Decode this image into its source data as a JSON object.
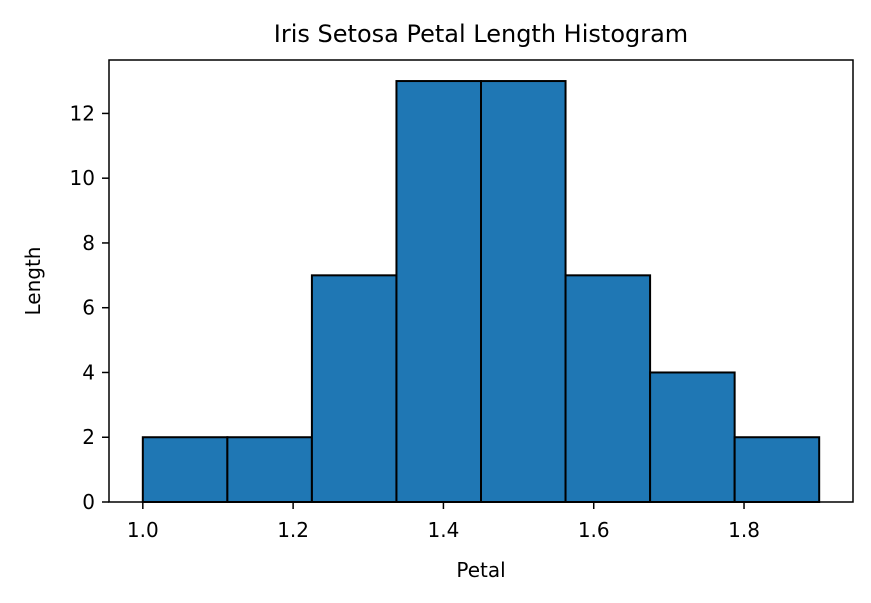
{
  "chart_data": {
    "type": "bar",
    "title": "Iris Setosa Petal Length Histogram",
    "xlabel": "Petal",
    "ylabel": "Length",
    "bins": [
      {
        "start": 1.0,
        "end": 1.1125,
        "count": 2
      },
      {
        "start": 1.1125,
        "end": 1.225,
        "count": 2
      },
      {
        "start": 1.225,
        "end": 1.3375,
        "count": 7
      },
      {
        "start": 1.3375,
        "end": 1.45,
        "count": 13
      },
      {
        "start": 1.45,
        "end": 1.5625,
        "count": 13
      },
      {
        "start": 1.5625,
        "end": 1.675,
        "count": 7
      },
      {
        "start": 1.675,
        "end": 1.7875,
        "count": 4
      },
      {
        "start": 1.7875,
        "end": 1.9,
        "count": 2
      }
    ],
    "xlim": [
      0.955,
      1.945
    ],
    "ylim": [
      0,
      13.65
    ],
    "xticks": [
      "1.0",
      "1.2",
      "1.4",
      "1.6",
      "1.8"
    ],
    "yticks": [
      "0",
      "2",
      "4",
      "6",
      "8",
      "10",
      "12"
    ],
    "bar_color": "#1f77b4",
    "edge_color": "#000000",
    "grid": false,
    "legend": "none"
  }
}
